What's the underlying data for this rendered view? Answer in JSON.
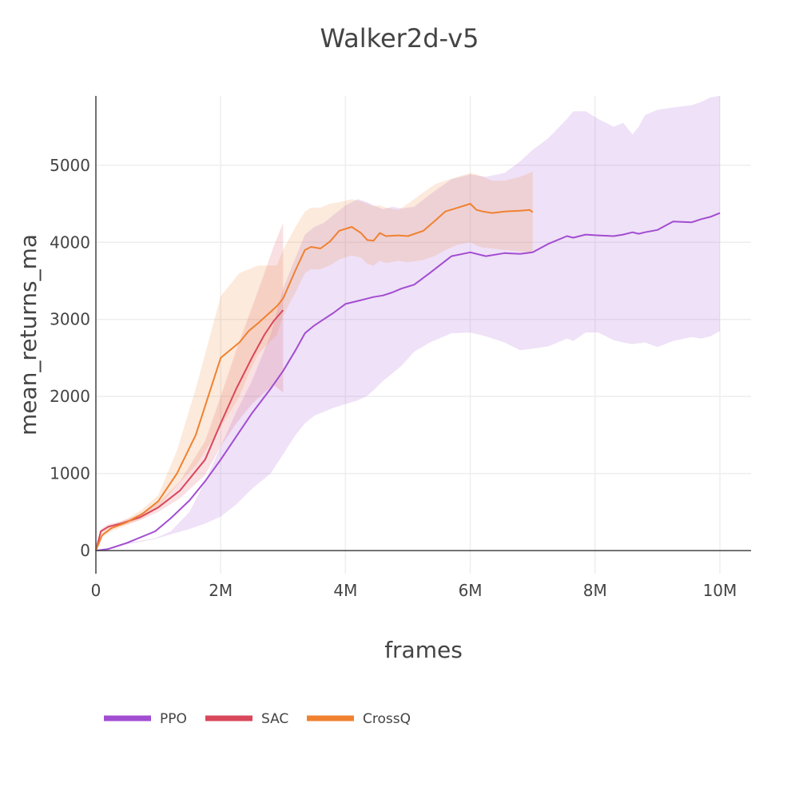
{
  "chart_data": {
    "type": "line",
    "title": "Walker2d-v5",
    "xlabel": "frames",
    "ylabel": "mean_returns_ma",
    "xlim": [
      0,
      10500000
    ],
    "ylim": [
      -300,
      5900
    ],
    "xticks": [
      0,
      2000000,
      4000000,
      6000000,
      8000000,
      10000000
    ],
    "xtick_labels": [
      "0",
      "2M",
      "4M",
      "6M",
      "8M",
      "10M"
    ],
    "yticks": [
      0,
      1000,
      2000,
      3000,
      4000,
      5000
    ],
    "ytick_labels": [
      "0",
      "1000",
      "2000",
      "3000",
      "4000",
      "5000"
    ],
    "legend_position": "bottom-left",
    "series": [
      {
        "name": "PPO",
        "color": "#a24dd1",
        "band_color": "rgba(162,77,209,0.17)",
        "x": [
          0,
          200000,
          500000,
          950000,
          1200000,
          1500000,
          1750000,
          2000000,
          2250000,
          2500000,
          2800000,
          3000000,
          3200000,
          3350000,
          3500000,
          3650000,
          3800000,
          4000000,
          4200000,
          4350000,
          4450000,
          4600000,
          4750000,
          4900000,
          5100000,
          5350000,
          5700000,
          6000000,
          6250000,
          6550000,
          6800000,
          7000000,
          7250000,
          7550000,
          7650000,
          7850000,
          8050000,
          8300000,
          8450000,
          8600000,
          8700000,
          8800000,
          9000000,
          9250000,
          9550000,
          9700000,
          9850000,
          10000000
        ],
        "values": [
          0,
          20,
          100,
          250,
          420,
          650,
          900,
          1180,
          1480,
          1780,
          2100,
          2330,
          2600,
          2820,
          2920,
          3000,
          3080,
          3200,
          3240,
          3270,
          3290,
          3310,
          3350,
          3400,
          3450,
          3600,
          3820,
          3870,
          3820,
          3860,
          3850,
          3870,
          3980,
          4080,
          4060,
          4100,
          4090,
          4080,
          4100,
          4130,
          4110,
          4130,
          4160,
          4270,
          4260,
          4300,
          4330,
          4380
        ],
        "upper": [
          0,
          30,
          100,
          160,
          250,
          500,
          900,
          1350,
          1800,
          2200,
          2800,
          3400,
          3800,
          4100,
          4200,
          4250,
          4350,
          4480,
          4560,
          4520,
          4480,
          4430,
          4460,
          4440,
          4460,
          4620,
          4820,
          4880,
          4850,
          4900,
          5050,
          5200,
          5350,
          5600,
          5700,
          5700,
          5600,
          5500,
          5550,
          5400,
          5500,
          5650,
          5720,
          5750,
          5780,
          5820,
          5880,
          5900
        ],
        "lower": [
          0,
          10,
          80,
          150,
          210,
          280,
          350,
          440,
          600,
          800,
          1000,
          1250,
          1500,
          1650,
          1750,
          1800,
          1850,
          1900,
          1950,
          2010,
          2080,
          2200,
          2300,
          2400,
          2580,
          2700,
          2820,
          2830,
          2780,
          2700,
          2600,
          2620,
          2650,
          2750,
          2720,
          2830,
          2830,
          2730,
          2700,
          2680,
          2690,
          2700,
          2640,
          2720,
          2770,
          2750,
          2780,
          2850
        ]
      },
      {
        "name": "SAC",
        "color": "#d9475b",
        "band_color": "rgba(217,71,91,0.17)",
        "x": [
          0,
          80000,
          200000,
          400000,
          700000,
          1000000,
          1350000,
          1750000,
          2000000,
          2250000,
          2500000,
          2700000,
          2850000,
          3000000
        ],
        "values": [
          0,
          250,
          310,
          350,
          430,
          560,
          780,
          1180,
          1650,
          2100,
          2500,
          2800,
          2980,
          3120
        ],
        "upper": [
          0,
          280,
          340,
          380,
          470,
          620,
          900,
          1420,
          2000,
          2600,
          3150,
          3600,
          3950,
          4250
        ],
        "lower": [
          0,
          220,
          280,
          320,
          390,
          500,
          680,
          980,
          1350,
          1650,
          1900,
          2050,
          2150,
          2050
        ]
      },
      {
        "name": "CrossQ",
        "color": "#f0812f",
        "band_color": "rgba(240,129,47,0.17)",
        "x": [
          0,
          100000,
          250000,
          500000,
          750000,
          1000000,
          1300000,
          1600000,
          2000000,
          2300000,
          2450000,
          2600000,
          2900000,
          3000000,
          3200000,
          3350000,
          3450000,
          3600000,
          3750000,
          3900000,
          4100000,
          4250000,
          4350000,
          4450000,
          4550000,
          4650000,
          4850000,
          5000000,
          5250000,
          5450000,
          5600000,
          5800000,
          6000000,
          6100000,
          6200000,
          6350000,
          6550000,
          6800000,
          6950000,
          7000000
        ],
        "values": [
          0,
          200,
          290,
          370,
          480,
          640,
          1000,
          1500,
          2500,
          2700,
          2850,
          2950,
          3170,
          3270,
          3640,
          3900,
          3940,
          3920,
          4010,
          4150,
          4200,
          4120,
          4030,
          4020,
          4120,
          4080,
          4090,
          4080,
          4150,
          4290,
          4400,
          4450,
          4500,
          4420,
          4400,
          4380,
          4400,
          4410,
          4420,
          4390
        ],
        "upper": [
          0,
          230,
          330,
          410,
          540,
          720,
          1300,
          2100,
          3300,
          3600,
          3650,
          3700,
          3700,
          3900,
          4200,
          4400,
          4450,
          4450,
          4500,
          4520,
          4560,
          4530,
          4500,
          4470,
          4480,
          4450,
          4420,
          4500,
          4650,
          4760,
          4800,
          4850,
          4900,
          4880,
          4850,
          4800,
          4800,
          4850,
          4900,
          4920
        ],
        "lower": [
          0,
          170,
          250,
          330,
          420,
          560,
          850,
          1100,
          1600,
          2000,
          2300,
          2550,
          2800,
          3050,
          3350,
          3600,
          3650,
          3650,
          3700,
          3780,
          3830,
          3800,
          3720,
          3700,
          3760,
          3730,
          3760,
          3740,
          3770,
          3830,
          3900,
          3970,
          4000,
          3960,
          3930,
          3920,
          3900,
          3880,
          3870,
          3870
        ]
      }
    ]
  }
}
